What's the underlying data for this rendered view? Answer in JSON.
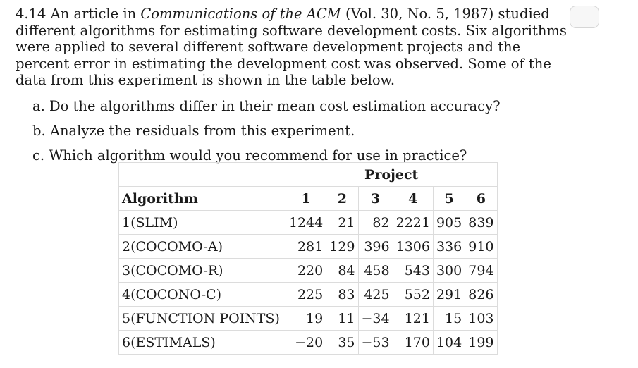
{
  "problem": {
    "number": "4.14",
    "intro_pre": "An article in",
    "journal": "Communications of the ACM",
    "intro_post": "(Vol. 30, No. 5, 1987) studied different algorithms for estimating software development costs. Six algorithms were applied to several different software development projects and the percent error in estimating the development cost was observed. Some of the data from this experiment is shown in the table below."
  },
  "parts": [
    "a. Do the algorithms differ in their mean cost estimation accuracy?",
    "b. Analyze the residuals from this experiment.",
    "c. Which algorithm would you recommend for use in practice?"
  ],
  "table": {
    "project_header": "Project",
    "algorithm_header": "Algorithm",
    "columns": [
      "1",
      "2",
      "3",
      "4",
      "5",
      "6"
    ],
    "rows": [
      {
        "name": "1(SLIM)",
        "values": [
          "1244",
          "21",
          "82",
          "2221",
          "905",
          "839"
        ]
      },
      {
        "name": "2(COCOMO-A)",
        "values": [
          "281",
          "129",
          "396",
          "1306",
          "336",
          "910"
        ]
      },
      {
        "name": "3(COCOMO-R)",
        "values": [
          "220",
          "84",
          "458",
          "543",
          "300",
          "794"
        ]
      },
      {
        "name": "4(COCONO-C)",
        "values": [
          "225",
          "83",
          "425",
          "552",
          "291",
          "826"
        ]
      },
      {
        "name": "5(FUNCTION POINTS)",
        "values": [
          "19",
          "11",
          "−34",
          "121",
          "15",
          "103"
        ]
      },
      {
        "name": "6(ESTIMALS)",
        "values": [
          "−20",
          "35",
          "−53",
          "170",
          "104",
          "199"
        ]
      }
    ]
  }
}
